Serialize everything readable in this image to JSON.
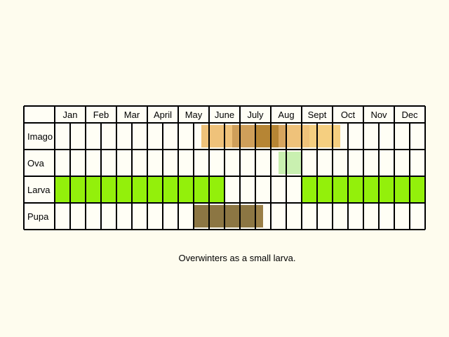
{
  "chart_data": {
    "type": "table",
    "months": [
      "Jan",
      "Feb",
      "Mar",
      "April",
      "May",
      "June",
      "July",
      "Aug",
      "Sept",
      "Oct",
      "Nov",
      "Dec"
    ],
    "half_months_per_row": 24,
    "stages": [
      {
        "name": "Imago",
        "color": "#f5cf80",
        "spans": [
          {
            "from": 9.5,
            "to": 11.5,
            "color": "#efc27a"
          },
          {
            "from": 11.5,
            "to": 13,
            "color": "#cf9f5a"
          },
          {
            "from": 13,
            "to": 14.5,
            "color": "#b68534"
          },
          {
            "from": 14.5,
            "to": 15,
            "color": "#d7a55e"
          },
          {
            "from": 15,
            "to": 16.5,
            "color": "#efc27a"
          },
          {
            "from": 16.5,
            "to": 18.5,
            "color": "#f5cf80"
          }
        ]
      },
      {
        "name": "Ova",
        "spans": [
          {
            "from": 14.5,
            "to": 16,
            "color": "#c9f0b0"
          }
        ]
      },
      {
        "name": "Larva",
        "spans": [
          {
            "from": 0,
            "to": 11,
            "color": "#93f00b"
          },
          {
            "from": 16,
            "to": 24,
            "color": "#93f00b"
          }
        ]
      },
      {
        "name": "Pupa",
        "spans": [
          {
            "from": 9,
            "to": 13,
            "color": "#8c7643"
          },
          {
            "from": 13,
            "to": 13.5,
            "color": "#9a7f47"
          }
        ]
      }
    ]
  },
  "footnote": "Overwinters as a small larva."
}
